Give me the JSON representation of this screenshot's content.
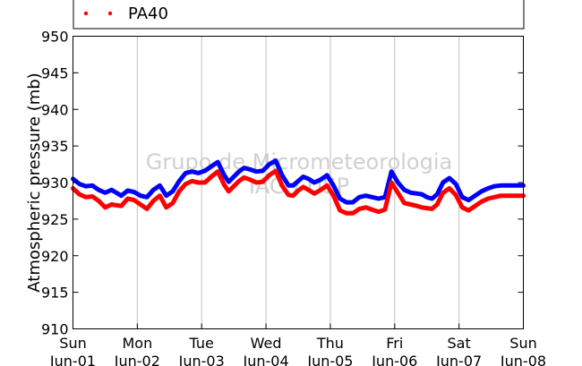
{
  "chart_data": {
    "type": "line",
    "ylabel": "Atmospheric pressure (mb)",
    "ylim": [
      910,
      950
    ],
    "yticks": [
      910,
      915,
      920,
      925,
      930,
      935,
      940,
      945,
      950
    ],
    "xlim": [
      0,
      7
    ],
    "x_ticks": [
      {
        "day": "Sun",
        "date": "Jun-01"
      },
      {
        "day": "Mon",
        "date": "Jun-02"
      },
      {
        "day": "Tue",
        "date": "Jun-03"
      },
      {
        "day": "Wed",
        "date": "Jun-04"
      },
      {
        "day": "Thu",
        "date": "Jun-05"
      },
      {
        "day": "Fri",
        "date": "Jun-06"
      },
      {
        "day": "Sat",
        "date": "Jun-07"
      },
      {
        "day": "Sun",
        "date": "Jun-08"
      }
    ],
    "grid": "vertical",
    "legend": {
      "placement": "top-left",
      "visible_entries": [
        "PA40"
      ]
    },
    "watermark": [
      "Grupo de Micrometeorologia",
      "IAG / USP"
    ],
    "series": [
      {
        "color": "#0000ff",
        "x": [
          0,
          0.1,
          0.2,
          0.3,
          0.4,
          0.5,
          0.6,
          0.75,
          0.85,
          0.95,
          1.05,
          1.15,
          1.25,
          1.35,
          1.45,
          1.55,
          1.65,
          1.75,
          1.85,
          1.95,
          2.05,
          2.15,
          2.25,
          2.35,
          2.42,
          2.5,
          2.58,
          2.66,
          2.75,
          2.85,
          2.95,
          3.05,
          3.15,
          3.25,
          3.35,
          3.42,
          3.5,
          3.58,
          3.66,
          3.75,
          3.85,
          3.95,
          4.05,
          4.15,
          4.25,
          4.35,
          4.45,
          4.55,
          4.65,
          4.75,
          4.85,
          4.95,
          5.05,
          5.15,
          5.25,
          5.35,
          5.42,
          5.5,
          5.58,
          5.66,
          5.75,
          5.85,
          5.95,
          6.05,
          6.15,
          6.25,
          6.35,
          6.45,
          6.55,
          6.65,
          6.75,
          6.85,
          6.95,
          7.0
        ],
        "y": [
          930.5,
          929.8,
          929.5,
          929.6,
          929.0,
          928.6,
          929.0,
          928.2,
          928.9,
          928.7,
          928.2,
          928.0,
          929.0,
          929.6,
          928.2,
          928.8,
          930.2,
          931.3,
          931.5,
          931.3,
          931.6,
          932.2,
          932.8,
          931.0,
          930.1,
          930.8,
          931.5,
          932.0,
          931.8,
          931.5,
          931.6,
          932.5,
          933.0,
          931.0,
          929.6,
          929.6,
          930.2,
          930.8,
          930.5,
          930.0,
          930.4,
          931.0,
          929.6,
          927.8,
          927.3,
          927.3,
          928.0,
          928.2,
          928.0,
          927.8,
          928.0,
          931.5,
          930.0,
          929.0,
          928.6,
          928.5,
          928.4,
          928.0,
          927.8,
          928.4,
          930.0,
          930.6,
          929.8,
          928.0,
          927.6,
          928.2,
          928.8,
          929.2,
          929.5,
          929.6,
          929.6,
          929.6,
          929.6,
          929.6
        ]
      },
      {
        "name": "PA40",
        "color": "#ff0000",
        "x": [
          0,
          0.1,
          0.2,
          0.3,
          0.4,
          0.5,
          0.6,
          0.75,
          0.85,
          0.95,
          1.05,
          1.15,
          1.25,
          1.35,
          1.45,
          1.55,
          1.65,
          1.75,
          1.85,
          1.95,
          2.05,
          2.15,
          2.25,
          2.35,
          2.42,
          2.5,
          2.58,
          2.66,
          2.75,
          2.85,
          2.95,
          3.05,
          3.15,
          3.25,
          3.35,
          3.42,
          3.5,
          3.58,
          3.66,
          3.75,
          3.85,
          3.95,
          4.05,
          4.15,
          4.25,
          4.35,
          4.45,
          4.55,
          4.65,
          4.75,
          4.85,
          4.95,
          5.05,
          5.15,
          5.25,
          5.35,
          5.42,
          5.5,
          5.58,
          5.66,
          5.75,
          5.85,
          5.95,
          6.05,
          6.15,
          6.25,
          6.35,
          6.45,
          6.55,
          6.65,
          6.75,
          6.85,
          6.95,
          7.0
        ],
        "y": [
          929.2,
          928.4,
          928.0,
          928.1,
          927.5,
          926.6,
          927.0,
          926.8,
          927.8,
          927.6,
          927.0,
          926.4,
          927.5,
          928.2,
          926.6,
          927.2,
          928.8,
          929.8,
          930.2,
          930.0,
          930.0,
          930.8,
          931.5,
          929.7,
          928.8,
          929.5,
          930.2,
          930.7,
          930.4,
          930.0,
          930.1,
          931.0,
          931.6,
          929.6,
          928.3,
          928.2,
          928.9,
          929.4,
          929.0,
          928.5,
          929.0,
          929.6,
          928.2,
          926.2,
          925.8,
          925.8,
          926.4,
          926.6,
          926.3,
          926.0,
          926.3,
          930.0,
          928.6,
          927.2,
          927.0,
          926.8,
          926.6,
          926.5,
          926.4,
          927.0,
          928.6,
          929.2,
          928.3,
          926.6,
          926.2,
          926.8,
          927.4,
          927.8,
          928.0,
          928.2,
          928.2,
          928.2,
          928.2,
          928.2
        ]
      }
    ]
  }
}
